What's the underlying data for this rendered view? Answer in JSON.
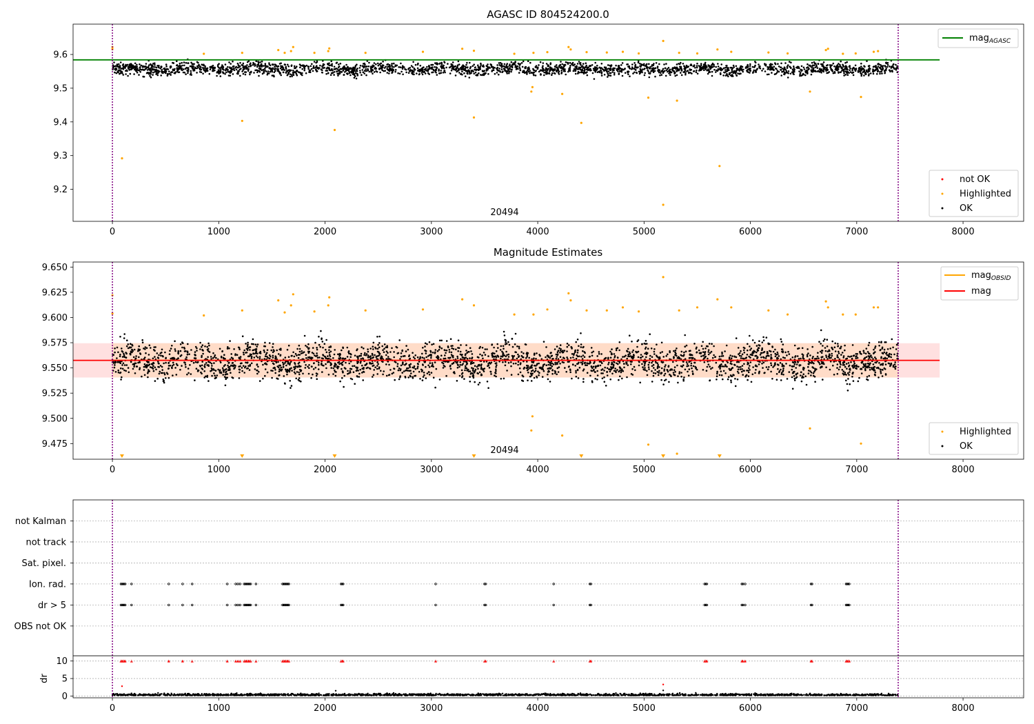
{
  "chart_data": [
    {
      "type": "scatter",
      "title": "AGASC ID 804524200.0",
      "xlim": [
        -370,
        8570
      ],
      "ylim": [
        9.105,
        9.69
      ],
      "xticks": [
        0,
        1000,
        2000,
        3000,
        4000,
        5000,
        6000,
        7000,
        8000
      ],
      "xtick_labels": [
        "0",
        "1000",
        "2000",
        "3000",
        "4000",
        "5000",
        "6000",
        "7000",
        "8000"
      ],
      "yticks": [
        9.2,
        9.3,
        9.4,
        9.5,
        9.6
      ],
      "ytick_labels": [
        "9.2",
        "9.3",
        "9.4",
        "9.5",
        "9.6"
      ],
      "obsid_label": "20494",
      "obsid_boundaries": [
        0,
        7390
      ],
      "reference_line": {
        "name": "mag",
        "subscript": "AGASC",
        "y": 9.584,
        "x_range": [
          -370,
          7780
        ],
        "color": "#008000"
      },
      "ok_band": {
        "mean": 9.557,
        "spread": 0.012
      },
      "highlighted_points": [
        [
          0,
          9.622
        ],
        [
          0,
          9.616
        ],
        [
          90,
          9.292
        ],
        [
          1220,
          9.403
        ],
        [
          2090,
          9.376
        ],
        [
          3400,
          9.413
        ],
        [
          3940,
          9.49
        ],
        [
          3950,
          9.503
        ],
        [
          4230,
          9.483
        ],
        [
          4410,
          9.397
        ],
        [
          5040,
          9.472
        ],
        [
          5180,
          9.154
        ],
        [
          5310,
          9.463
        ],
        [
          5710,
          9.269
        ],
        [
          6560,
          9.49
        ],
        [
          7040,
          9.474
        ],
        [
          860,
          9.602
        ],
        [
          1220,
          9.605
        ],
        [
          1560,
          9.613
        ],
        [
          1620,
          9.605
        ],
        [
          1680,
          9.61
        ],
        [
          1700,
          9.622
        ],
        [
          1900,
          9.605
        ],
        [
          2030,
          9.61
        ],
        [
          2040,
          9.618
        ],
        [
          2380,
          9.605
        ],
        [
          2920,
          9.608
        ],
        [
          3290,
          9.617
        ],
        [
          3400,
          9.611
        ],
        [
          3780,
          9.602
        ],
        [
          3960,
          9.605
        ],
        [
          4090,
          9.607
        ],
        [
          4290,
          9.622
        ],
        [
          4310,
          9.615
        ],
        [
          4460,
          9.607
        ],
        [
          4650,
          9.606
        ],
        [
          4800,
          9.608
        ],
        [
          4950,
          9.603
        ],
        [
          5180,
          9.64
        ],
        [
          5330,
          9.605
        ],
        [
          5500,
          9.603
        ],
        [
          5690,
          9.615
        ],
        [
          5820,
          9.608
        ],
        [
          6170,
          9.606
        ],
        [
          6350,
          9.603
        ],
        [
          6710,
          9.613
        ],
        [
          6730,
          9.617
        ],
        [
          6870,
          9.602
        ],
        [
          6990,
          9.603
        ],
        [
          7160,
          9.608
        ],
        [
          7200,
          9.61
        ]
      ],
      "legend": [
        {
          "label": "mag",
          "subscript": "AGASC",
          "kind": "line",
          "color": "#008000",
          "placement": "upper right"
        },
        {
          "label": "not OK",
          "kind": "point",
          "color": "#ff0000",
          "placement": "lower right"
        },
        {
          "label": "Highlighted",
          "kind": "point",
          "color": "#ffa500",
          "placement": "lower right"
        },
        {
          "label": "OK",
          "kind": "point",
          "color": "#000000",
          "placement": "lower right"
        }
      ]
    },
    {
      "type": "scatter",
      "title": "Magnitude Estimates",
      "xlim": [
        -370,
        8570
      ],
      "ylim": [
        9.4595,
        9.655
      ],
      "xticks": [
        0,
        1000,
        2000,
        3000,
        4000,
        5000,
        6000,
        7000,
        8000
      ],
      "xtick_labels": [
        "0",
        "1000",
        "2000",
        "3000",
        "4000",
        "5000",
        "6000",
        "7000",
        "8000"
      ],
      "yticks": [
        9.475,
        9.5,
        9.525,
        9.55,
        9.575,
        9.6,
        9.625,
        9.65
      ],
      "ytick_labels": [
        "9.475",
        "9.500",
        "9.525",
        "9.550",
        "9.575",
        "9.600",
        "9.625",
        "9.650"
      ],
      "obsid_label": "20494",
      "obsid_boundaries": [
        0,
        7390
      ],
      "mean_line": {
        "name": "mag",
        "y": 9.5575,
        "x_range": [
          -370,
          7780
        ],
        "color": "#ff0000"
      },
      "std_band": {
        "y_range": [
          9.5405,
          9.5745
        ],
        "x_range": [
          -370,
          7780
        ],
        "color": "#ffe0e0"
      },
      "obsid_band": {
        "y_range": [
          9.5405,
          9.5745
        ],
        "x_range": [
          0,
          7390
        ],
        "color": "#ffdcc8"
      },
      "obsid_line": {
        "name": "mag",
        "subscript": "OBSID",
        "y": 9.5575,
        "color": "#ffa500"
      },
      "ok_band": {
        "mean": 9.557,
        "spread": 0.012
      },
      "highlighted_points": [
        [
          0,
          9.622
        ],
        [
          0,
          9.604
        ],
        [
          860,
          9.602
        ],
        [
          1220,
          9.607
        ],
        [
          1560,
          9.617
        ],
        [
          1620,
          9.605
        ],
        [
          1680,
          9.612
        ],
        [
          1700,
          9.623
        ],
        [
          1900,
          9.606
        ],
        [
          2030,
          9.612
        ],
        [
          2040,
          9.62
        ],
        [
          2380,
          9.607
        ],
        [
          2920,
          9.608
        ],
        [
          3290,
          9.618
        ],
        [
          3400,
          9.612
        ],
        [
          3780,
          9.603
        ],
        [
          3960,
          9.603
        ],
        [
          4090,
          9.608
        ],
        [
          4290,
          9.624
        ],
        [
          4310,
          9.617
        ],
        [
          4460,
          9.607
        ],
        [
          4650,
          9.607
        ],
        [
          4800,
          9.61
        ],
        [
          4950,
          9.606
        ],
        [
          5180,
          9.64
        ],
        [
          5330,
          9.607
        ],
        [
          5500,
          9.61
        ],
        [
          5690,
          9.618
        ],
        [
          5820,
          9.61
        ],
        [
          6170,
          9.607
        ],
        [
          6350,
          9.603
        ],
        [
          6710,
          9.616
        ],
        [
          6730,
          9.61
        ],
        [
          6870,
          9.603
        ],
        [
          6990,
          9.603
        ],
        [
          7160,
          9.61
        ],
        [
          7200,
          9.61
        ],
        [
          3940,
          9.488
        ],
        [
          3950,
          9.502
        ],
        [
          4230,
          9.483
        ],
        [
          5040,
          9.474
        ],
        [
          5310,
          9.465
        ],
        [
          6560,
          9.49
        ],
        [
          7040,
          9.475
        ]
      ],
      "offscale_markers": [
        90,
        1220,
        2090,
        3400,
        4410,
        5180,
        5710
      ],
      "legend": [
        {
          "label": "mag",
          "subscript": "OBSID",
          "kind": "line",
          "color": "#ffa500",
          "placement": "upper right"
        },
        {
          "label": "mag",
          "kind": "line",
          "color": "#ff0000",
          "placement": "upper right"
        },
        {
          "label": "Highlighted",
          "kind": "point",
          "color": "#ffa500",
          "placement": "lower right"
        },
        {
          "label": "OK",
          "kind": "point",
          "color": "#000000",
          "placement": "lower right"
        }
      ]
    },
    {
      "type": "scatter",
      "xlim": [
        -370,
        8570
      ],
      "ylim": [
        -0.5,
        56
      ],
      "xticks": [
        0,
        1000,
        2000,
        3000,
        4000,
        5000,
        6000,
        7000,
        8000
      ],
      "xtick_labels": [
        "0",
        "1000",
        "2000",
        "3000",
        "4000",
        "5000",
        "6000",
        "7000",
        "8000"
      ],
      "obsid_boundaries": [
        0,
        7390
      ],
      "flag_rows": [
        {
          "label": "not Kalman",
          "y": 50
        },
        {
          "label": "not track",
          "y": 44
        },
        {
          "label": "Sat. pixel.",
          "y": 38
        },
        {
          "label": "Ion. rad.",
          "y": 32
        },
        {
          "label": "dr > 5",
          "y": 26
        },
        {
          "label": "OBS not OK",
          "y": 20
        }
      ],
      "flag_times": [
        80,
        90,
        100,
        110,
        120,
        180,
        530,
        660,
        750,
        1080,
        1160,
        1180,
        1200,
        1240,
        1250,
        1260,
        1270,
        1280,
        1290,
        1300,
        1350,
        1600,
        1610,
        1620,
        1630,
        1640,
        1650,
        1660,
        2150,
        2160,
        2170,
        3040,
        3500,
        3510,
        4150,
        4490,
        4500,
        5570,
        5580,
        5590,
        5920,
        5930,
        5950,
        6570,
        6580,
        6900,
        6910,
        6920,
        6930
      ],
      "dr_axis": {
        "label": "dr",
        "yticks": [
          0,
          5,
          10
        ],
        "ytick_labels": [
          "0",
          "5",
          "10"
        ],
        "clip_at": 10
      },
      "dr_outliers": [
        [
          90,
          2.8
        ],
        [
          2100,
          1.5
        ],
        [
          5180,
          3.3
        ],
        [
          5180,
          1.6
        ]
      ]
    }
  ]
}
